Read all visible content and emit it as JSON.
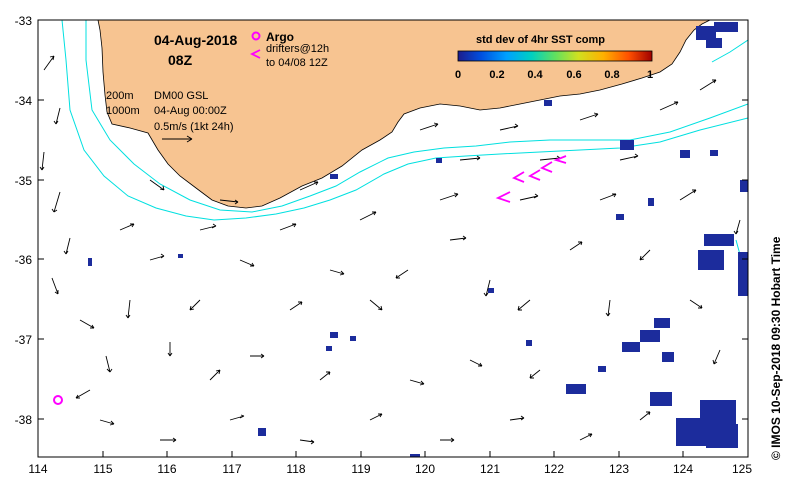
{
  "header": {
    "date": "04-Aug-2018",
    "time": "08Z"
  },
  "legend": {
    "argo_label": "Argo",
    "drifters_line1": "drifters@12h",
    "drifters_line2": "to 04/08 12Z",
    "argo_color": "#ff00ff",
    "drifter_color": "#ff00ff"
  },
  "info": {
    "contour_200": "200m",
    "contour_1000": "1000m",
    "product": "DM00 GSL",
    "analysis_time": "04-Aug 00:00Z",
    "scale": "0.5m/s (1kt 24h)"
  },
  "colorbar": {
    "title": "std dev of 4hr SST comp",
    "ticks": [
      "0",
      "0.2",
      "0.4",
      "0.6",
      "0.8",
      "1"
    ],
    "colors": [
      "#1c1c8c",
      "#0050e0",
      "#00a0ff",
      "#00d0c0",
      "#60e060",
      "#d0e020",
      "#ffb000",
      "#ff5000",
      "#a00000"
    ]
  },
  "axes": {
    "x_ticks": [
      "114",
      "115",
      "116",
      "117",
      "118",
      "119",
      "120",
      "121",
      "122",
      "123",
      "124",
      "125"
    ],
    "y_ticks": [
      "-33",
      "-34",
      "-35",
      "-36",
      "-37",
      "-38"
    ]
  },
  "credit": "© IMOS 10-Sep-2018 09:30 Hobart Time",
  "colors": {
    "land": "#f7c491",
    "contour": "#00e0e0",
    "ocean": "#ffffff",
    "arrows": "#000000"
  }
}
